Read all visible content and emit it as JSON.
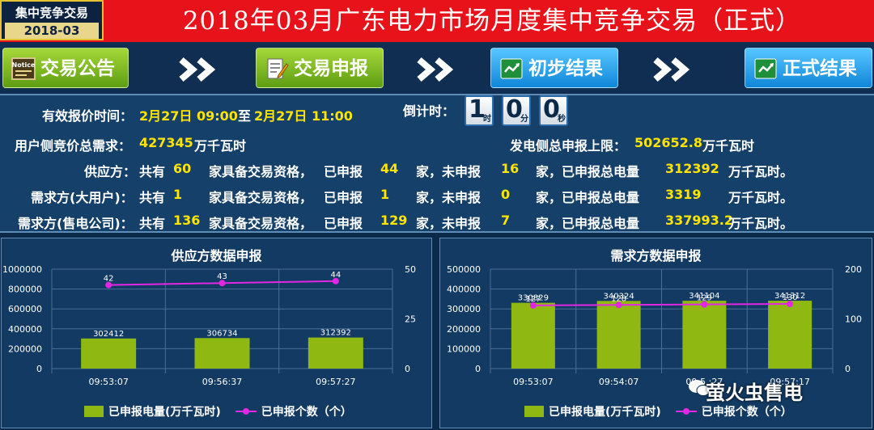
{
  "badge": {
    "line1": "集中竞争交易",
    "line2": "2018-03"
  },
  "title": "2018年03月广东电力市场月度集中竞争交易（正式）",
  "nav": [
    {
      "label": "交易公告",
      "style": "green",
      "icon": "notice-icon"
    },
    {
      "label": "交易申报",
      "style": "green",
      "icon": "edit-icon"
    },
    {
      "label": "初步结果",
      "style": "blue",
      "icon": "excel-icon"
    },
    {
      "label": "正式结果",
      "style": "blue",
      "icon": "excel-icon"
    }
  ],
  "info": {
    "valid_label": "有效报价时间：",
    "valid_start": "2月27日 09:00",
    "valid_to": "至",
    "valid_end": "2月27日 11:00",
    "countdown_label": "倒计时：",
    "countdown": [
      {
        "n": "1",
        "u": "时"
      },
      {
        "n": "0",
        "u": "分"
      },
      {
        "n": "0",
        "u": "秒"
      }
    ],
    "demand_total_label": "用户侧竞价总需求：",
    "demand_total_value": "427345",
    "demand_total_unit": "万千瓦时",
    "gen_cap_label": "发电侧总申报上限：",
    "gen_cap_value": "502652.8",
    "gen_cap_unit": "万千瓦时",
    "rows": [
      {
        "name": "供应方：",
        "total_label": "共有",
        "total": "60",
        "qual": "家具备交易资格，",
        "sub_label": "已申报",
        "sub": "44",
        "not_label": "家，未申报",
        "not": "16",
        "amt_label": "家，已申报总电量",
        "amt": "312392",
        "unit": "万千瓦时。"
      },
      {
        "name": "需求方(大用户)：",
        "total_label": "共有",
        "total": "1",
        "qual": "家具备交易资格，",
        "sub_label": "已申报",
        "sub": "1",
        "not_label": "家，未申报",
        "not": "0",
        "amt_label": "家，已申报总电量",
        "amt": "3319",
        "unit": "万千瓦时。"
      },
      {
        "name": "需求方(售电公司)：",
        "total_label": "共有",
        "total": "136",
        "qual": "家具备交易资格，",
        "sub_label": "已申报",
        "sub": "129",
        "not_label": "家，未申报",
        "not": "7",
        "amt_label": "家，已申报总电量",
        "amt": "337993.2",
        "unit": "万千瓦时。"
      }
    ]
  },
  "legend": {
    "bar": "已申报电量(万千瓦时)",
    "line": "已申报个数（个）"
  },
  "colors": {
    "bar": "#8fb813",
    "line": "#e326e3"
  },
  "watermark": "萤火虫售电",
  "chart_data": [
    {
      "type": "bar",
      "title": "供应方数据申报",
      "categories": [
        "09:53:07",
        "09:56:37",
        "09:57:27"
      ],
      "series": [
        {
          "name": "已申报电量(万千瓦时)",
          "type": "bar",
          "axis": "left",
          "values": [
            302412,
            306734,
            312392
          ]
        },
        {
          "name": "已申报个数（个）",
          "type": "line",
          "axis": "right",
          "values": [
            42,
            43,
            44
          ]
        }
      ],
      "ylim": [
        0,
        1000000
      ],
      "yticks": [
        "0",
        "200000",
        "400000",
        "600000",
        "800000",
        "1000000"
      ],
      "y2lim": [
        0,
        50
      ],
      "y2ticks": [
        "0",
        "25",
        "50"
      ],
      "grid": true,
      "legend": "bottom"
    },
    {
      "type": "bar",
      "title": "需求方数据申报",
      "categories": [
        "09:53:07",
        "09:54:07",
        "09:5_:_7",
        "09:57:17"
      ],
      "category_labels": [
        "09:53:07",
        "09:54:07",
        "09:5 :27",
        "09:57:17"
      ],
      "series": [
        {
          "name": "已申报电量(万千瓦时)",
          "type": "bar",
          "axis": "left",
          "values": [
            330829,
            340324,
            341104,
            341312
          ],
          "labels": [
            "330829",
            "340324",
            "341104",
            "341312"
          ]
        },
        {
          "name": "已申报个数（个）",
          "type": "line",
          "axis": "right",
          "values": [
            127,
            128,
            129,
            130
          ]
        }
      ],
      "ylim": [
        0,
        500000
      ],
      "yticks": [
        "0",
        "100000",
        "200000",
        "300000",
        "400000",
        "500000"
      ],
      "y2lim": [
        0,
        200
      ],
      "y2ticks": [
        "0",
        "100",
        "200"
      ],
      "grid": true,
      "legend": "bottom"
    }
  ]
}
